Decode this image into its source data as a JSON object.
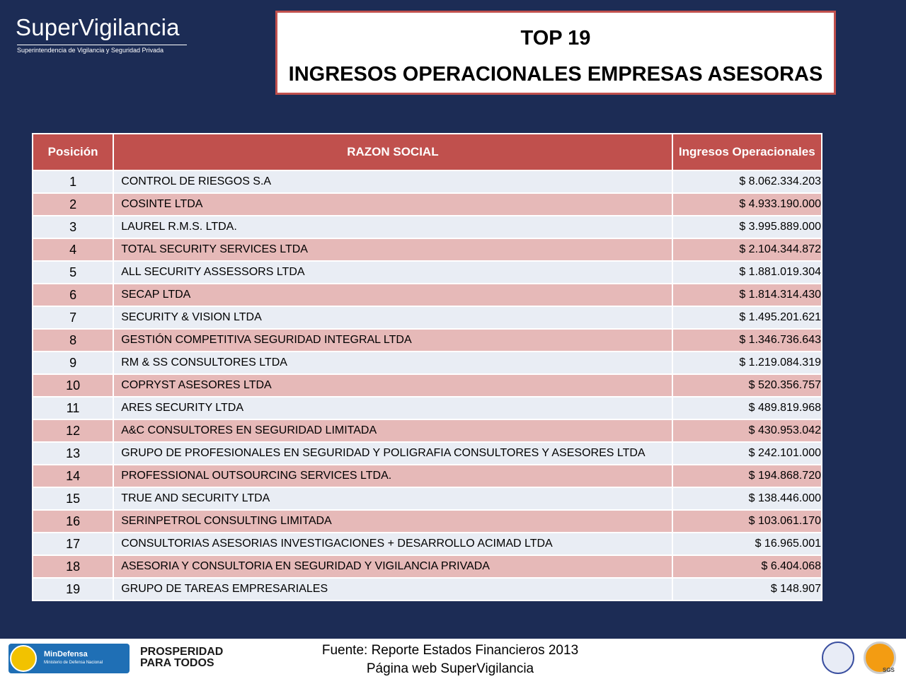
{
  "header": {
    "logo": "SuperVigilancia",
    "logo_subtitle": "Superintendencia de Vigilancia y Seguridad Privada",
    "title_line1": "TOP 19",
    "title_line2": "INGRESOS OPERACIONALES EMPRESAS ASESORAS"
  },
  "table": {
    "columns": [
      "Posición",
      "RAZON SOCIAL",
      "Ingresos Operacionales"
    ],
    "rows": [
      [
        "1",
        "CONTROL DE RIESGOS S.A",
        "$ 8.062.334.203"
      ],
      [
        "2",
        "COSINTE LTDA",
        "$ 4.933.190.000"
      ],
      [
        "3",
        "LAUREL R.M.S. LTDA.",
        "$ 3.995.889.000"
      ],
      [
        "4",
        "TOTAL SECURITY SERVICES LTDA",
        "$ 2.104.344.872"
      ],
      [
        "5",
        "ALL SECURITY ASSESSORS LTDA",
        "$ 1.881.019.304"
      ],
      [
        "6",
        "SECAP LTDA",
        "$ 1.814.314.430"
      ],
      [
        "7",
        "SECURITY & VISION LTDA",
        "$ 1.495.201.621"
      ],
      [
        "8",
        "GESTIÓN COMPETITIVA SEGURIDAD INTEGRAL LTDA",
        "$ 1.346.736.643"
      ],
      [
        "9",
        "RM & SS CONSULTORES LTDA",
        "$ 1.219.084.319"
      ],
      [
        "10",
        "COPRYST ASESORES LTDA",
        "$ 520.356.757"
      ],
      [
        "11",
        "ARES SECURITY LTDA",
        "$ 489.819.968"
      ],
      [
        "12",
        "A&C CONSULTORES EN SEGURIDAD LIMITADA",
        "$ 430.953.042"
      ],
      [
        "13",
        "GRUPO DE PROFESIONALES EN SEGURIDAD Y POLIGRAFIA CONSULTORES Y ASESORES LTDA",
        "$ 242.101.000"
      ],
      [
        "14",
        "PROFESSIONAL OUTSOURCING SERVICES LTDA.",
        "$ 194.868.720"
      ],
      [
        "15",
        "TRUE AND SECURITY LTDA",
        "$ 138.446.000"
      ],
      [
        "16",
        "SERINPETROL CONSULTING LIMITADA",
        "$ 103.061.170"
      ],
      [
        "17",
        "CONSULTORIAS ASESORIAS INVESTIGACIONES + DESARROLLO ACIMAD LTDA",
        "$ 16.965.001"
      ],
      [
        "18",
        "ASESORIA Y CONSULTORIA EN SEGURIDAD Y VIGILANCIA PRIVADA",
        "$ 6.404.068"
      ],
      [
        "19",
        "GRUPO DE TAREAS EMPRESARIALES",
        "$ 148.907"
      ]
    ]
  },
  "footer": {
    "source_line1": "Fuente: Reporte Estados Financieros 2013",
    "source_line2": "Página web SuperVigilancia",
    "mindefensa": "MinDefensa",
    "mindefensa_sub": "Ministerio de Defensa Nacional",
    "prosperidad_line1": "PROSPERIDAD",
    "prosperidad_line2": "PARA TODOS",
    "sgs": "SGS"
  }
}
